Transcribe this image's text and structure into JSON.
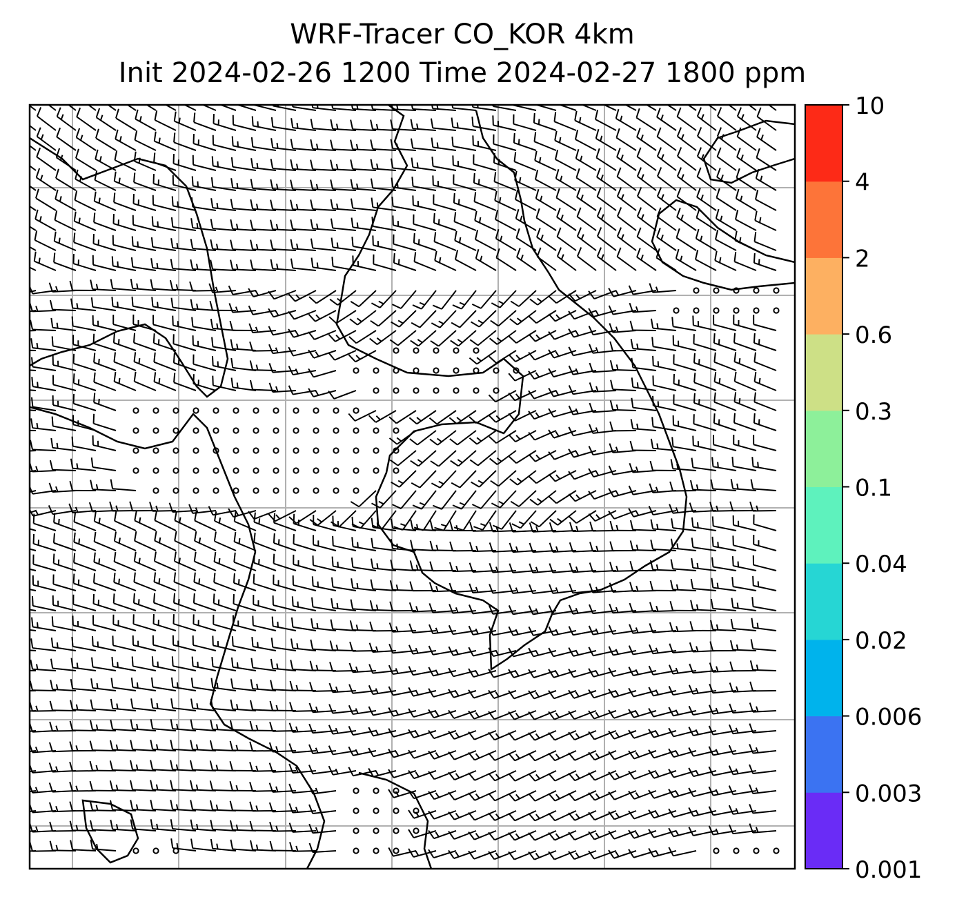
{
  "title": {
    "line1": "WRF-Tracer CO_KOR 4km",
    "line2": "Init 2024-02-26 1200 Time 2024-02-27 1800 ppm"
  },
  "colorbar": {
    "levels": [
      "0.001",
      "0.003",
      "0.006",
      "0.02",
      "0.04",
      "0.1",
      "0.3",
      "0.6",
      "2",
      "4",
      "10"
    ],
    "colors": [
      "#6a2cf6",
      "#3b73f2",
      "#00b3ec",
      "#26d6d4",
      "#5ef2bd",
      "#8df09a",
      "#cde086",
      "#fdb061",
      "#fd7439",
      "#fd2a17"
    ]
  },
  "colors": {
    "frame": "#000000",
    "grid": "#b0b0b0",
    "barb": "#000000",
    "coast": "#000000"
  }
}
